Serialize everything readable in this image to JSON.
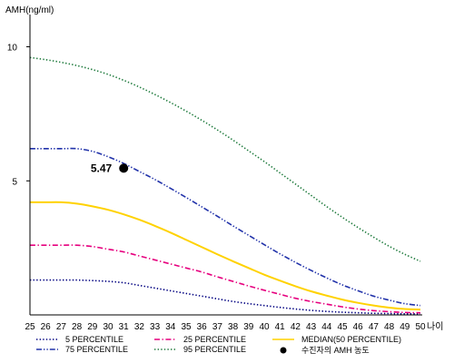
{
  "chart_data": {
    "type": "line",
    "ylabel": "AMH(ng/ml)",
    "xlabel": "나이",
    "xlim": [
      25,
      50
    ],
    "ylim": [
      0,
      11
    ],
    "yticks": [
      5,
      10
    ],
    "x": [
      25,
      26,
      27,
      28,
      29,
      30,
      31,
      32,
      33,
      34,
      35,
      36,
      37,
      38,
      39,
      40,
      41,
      42,
      43,
      44,
      45,
      46,
      47,
      48,
      49,
      50
    ],
    "series": [
      {
        "name": "5 PERCENTILE",
        "color": "#000080",
        "style": "dotted",
        "values": [
          1.3,
          1.3,
          1.3,
          1.3,
          1.28,
          1.25,
          1.2,
          1.1,
          1.0,
          0.9,
          0.8,
          0.7,
          0.6,
          0.5,
          0.42,
          0.35,
          0.28,
          0.22,
          0.17,
          0.13,
          0.1,
          0.08,
          0.06,
          0.05,
          0.04,
          0.04
        ]
      },
      {
        "name": "25 PERCENTILE",
        "color": "#e6007e",
        "style": "dashdot",
        "values": [
          2.6,
          2.6,
          2.6,
          2.6,
          2.55,
          2.45,
          2.35,
          2.2,
          2.05,
          1.9,
          1.75,
          1.6,
          1.42,
          1.25,
          1.08,
          0.92,
          0.77,
          0.62,
          0.5,
          0.4,
          0.3,
          0.22,
          0.16,
          0.12,
          0.09,
          0.08
        ]
      },
      {
        "name": "MEDIAN(50 PERCENTILE)",
        "color": "#ffd200",
        "style": "solid",
        "values": [
          4.2,
          4.2,
          4.2,
          4.15,
          4.05,
          3.92,
          3.75,
          3.55,
          3.32,
          3.07,
          2.8,
          2.53,
          2.26,
          2.0,
          1.75,
          1.5,
          1.28,
          1.07,
          0.88,
          0.72,
          0.57,
          0.45,
          0.35,
          0.27,
          0.22,
          0.2
        ]
      },
      {
        "name": "75 PERCENTILE",
        "color": "#2233aa",
        "style": "dashdotdot",
        "values": [
          6.2,
          6.2,
          6.2,
          6.2,
          6.1,
          5.9,
          5.65,
          5.35,
          5.05,
          4.72,
          4.38,
          4.03,
          3.68,
          3.32,
          2.97,
          2.62,
          2.28,
          1.96,
          1.66,
          1.38,
          1.12,
          0.9,
          0.7,
          0.55,
          0.42,
          0.35
        ]
      },
      {
        "name": "95 PERCENTILE",
        "color": "#1e7a3c",
        "style": "dotted",
        "values": [
          9.6,
          9.52,
          9.42,
          9.3,
          9.15,
          8.97,
          8.75,
          8.5,
          8.22,
          7.92,
          7.6,
          7.26,
          6.9,
          6.52,
          6.12,
          5.72,
          5.3,
          4.88,
          4.46,
          4.04,
          3.64,
          3.26,
          2.9,
          2.56,
          2.26,
          2.0
        ]
      }
    ],
    "point": {
      "name": "수진자의 AMH 농도",
      "x": 31,
      "y": 5.47,
      "label": "5.47",
      "color": "#000000"
    },
    "legend_placement": "bottom",
    "grid": false
  }
}
